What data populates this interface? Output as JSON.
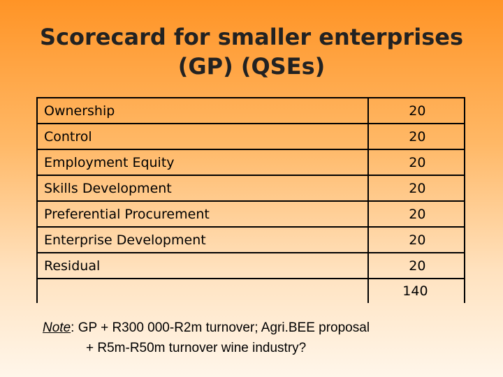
{
  "title": {
    "line1": "Scorecard for smaller enterprises",
    "line2": "(GP) (QSEs)"
  },
  "rows": [
    {
      "label": "Ownership",
      "value": "20"
    },
    {
      "label": "Control",
      "value": "20"
    },
    {
      "label": "Employment Equity",
      "value": "20"
    },
    {
      "label": "Skills Development",
      "value": "20"
    },
    {
      "label": "Preferential Procurement",
      "value": "20"
    },
    {
      "label": "Enterprise Development",
      "value": "20"
    },
    {
      "label": "Residual",
      "value": "20"
    }
  ],
  "total": {
    "label": "",
    "value": "140"
  },
  "note": {
    "prefix": "Note",
    "line1": ": GP + R300 000-R2m turnover; Agri.BEE proposal",
    "line2": "+ R5m-R50m turnover wine industry?"
  }
}
